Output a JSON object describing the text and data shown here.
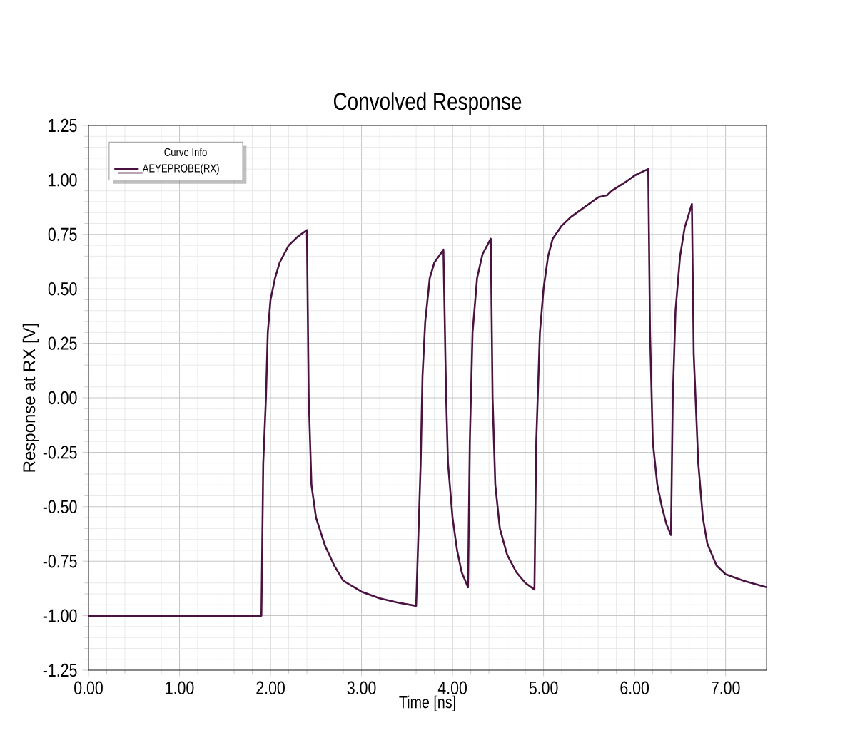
{
  "chart_data": {
    "type": "line",
    "title": "Convolved Response",
    "xlabel": "Time [ns]",
    "ylabel": "Response at RX [V]",
    "legend_title": "Curve Info",
    "legend": "top left",
    "grid": true,
    "xlim": [
      0,
      7.45
    ],
    "ylim": [
      -1.25,
      1.25
    ],
    "xticks": [
      {
        "value": 0,
        "label": "0.00"
      },
      {
        "value": 1,
        "label": "1.00"
      },
      {
        "value": 2,
        "label": "2.00"
      },
      {
        "value": 3,
        "label": "3.00"
      },
      {
        "value": 4,
        "label": "4.00"
      },
      {
        "value": 5,
        "label": "5.00"
      },
      {
        "value": 6,
        "label": "6.00"
      },
      {
        "value": 7,
        "label": "7.00"
      }
    ],
    "yticks": [
      {
        "value": -1.25,
        "label": "-1.25"
      },
      {
        "value": -1,
        "label": "-1.00"
      },
      {
        "value": -0.75,
        "label": "-0.75"
      },
      {
        "value": -0.5,
        "label": "-0.50"
      },
      {
        "value": -0.25,
        "label": "-0.25"
      },
      {
        "value": 0,
        "label": "0.00"
      },
      {
        "value": 0.25,
        "label": "0.25"
      },
      {
        "value": 0.5,
        "label": "0.50"
      },
      {
        "value": 0.75,
        "label": "0.75"
      },
      {
        "value": 1,
        "label": "1.00"
      },
      {
        "value": 1.25,
        "label": "1.25"
      }
    ],
    "series": [
      {
        "name": "AEYEPROBE(RX)",
        "color": "#4a1240",
        "x": [
          0,
          1.9,
          1.92,
          1.95,
          1.97,
          2.0,
          2.05,
          2.1,
          2.2,
          2.3,
          2.4,
          2.42,
          2.45,
          2.5,
          2.6,
          2.7,
          2.8,
          3.0,
          3.2,
          3.4,
          3.6,
          3.65,
          3.67,
          3.7,
          3.75,
          3.8,
          3.9,
          3.93,
          3.95,
          4.0,
          4.05,
          4.1,
          4.17,
          4.19,
          4.22,
          4.27,
          4.33,
          4.42,
          4.44,
          4.47,
          4.52,
          4.6,
          4.7,
          4.8,
          4.9,
          4.92,
          4.96,
          5.0,
          5.05,
          5.1,
          5.2,
          5.3,
          5.4,
          5.5,
          5.6,
          5.7,
          5.75,
          5.9,
          6.0,
          6.1,
          6.15,
          6.17,
          6.2,
          6.25,
          6.3,
          6.35,
          6.4,
          6.42,
          6.45,
          6.5,
          6.55,
          6.63,
          6.65,
          6.7,
          6.75,
          6.8,
          6.9,
          7.0,
          7.2,
          7.45
        ],
        "values": [
          -1,
          -1,
          -0.3,
          0.0,
          0.3,
          0.45,
          0.55,
          0.62,
          0.7,
          0.74,
          0.77,
          0.0,
          -0.4,
          -0.55,
          -0.68,
          -0.77,
          -0.84,
          -0.89,
          -0.92,
          -0.94,
          -0.955,
          -0.3,
          0.1,
          0.35,
          0.55,
          0.62,
          0.68,
          0.0,
          -0.3,
          -0.55,
          -0.7,
          -0.8,
          -0.87,
          -0.2,
          0.3,
          0.55,
          0.66,
          0.73,
          0.0,
          -0.4,
          -0.6,
          -0.72,
          -0.8,
          -0.85,
          -0.88,
          -0.2,
          0.3,
          0.5,
          0.65,
          0.73,
          0.79,
          0.83,
          0.86,
          0.89,
          0.92,
          0.93,
          0.95,
          0.99,
          1.02,
          1.04,
          1.05,
          0.3,
          -0.2,
          -0.4,
          -0.5,
          -0.58,
          -0.63,
          0.0,
          0.4,
          0.65,
          0.78,
          0.89,
          0.2,
          -0.3,
          -0.55,
          -0.67,
          -0.77,
          -0.81,
          -0.84,
          -0.87
        ]
      }
    ]
  }
}
